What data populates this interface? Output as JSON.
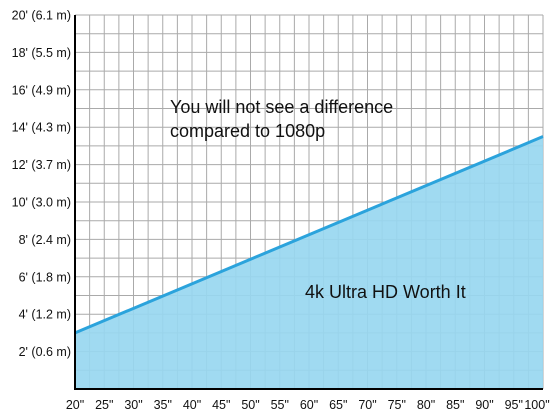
{
  "chart_data": {
    "type": "area",
    "x": [
      20,
      100
    ],
    "y": [
      3,
      13.5
    ],
    "x_ticks": [
      {
        "value": 20,
        "label": "20\""
      },
      {
        "value": 25,
        "label": "25\""
      },
      {
        "value": 30,
        "label": "30\""
      },
      {
        "value": 35,
        "label": "35\""
      },
      {
        "value": 40,
        "label": "40\""
      },
      {
        "value": 45,
        "label": "45\""
      },
      {
        "value": 50,
        "label": "50\""
      },
      {
        "value": 55,
        "label": "55\""
      },
      {
        "value": 60,
        "label": "60\""
      },
      {
        "value": 65,
        "label": "65\""
      },
      {
        "value": 70,
        "label": "70\""
      },
      {
        "value": 75,
        "label": "75\""
      },
      {
        "value": 80,
        "label": "80\""
      },
      {
        "value": 85,
        "label": "85\""
      },
      {
        "value": 90,
        "label": "90\""
      },
      {
        "value": 95,
        "label": "95\""
      },
      {
        "value": 100,
        "label": "100\""
      }
    ],
    "y_ticks": [
      {
        "value": 2,
        "label": "2' (0.6 m)"
      },
      {
        "value": 4,
        "label": "4' (1.2 m)"
      },
      {
        "value": 6,
        "label": "6' (1.8 m)"
      },
      {
        "value": 8,
        "label": "8' (2.4 m)"
      },
      {
        "value": 10,
        "label": "10' (3.0 m)"
      },
      {
        "value": 12,
        "label": "12' (3.7 m)"
      },
      {
        "value": 14,
        "label": "14' (4.3 m)"
      },
      {
        "value": 16,
        "label": "16' (4.9 m)"
      },
      {
        "value": 18,
        "label": "18' (5.5 m)"
      },
      {
        "value": 20,
        "label": "20' (6.1 m)"
      }
    ],
    "xlim": [
      20,
      100
    ],
    "ylim": [
      0,
      20
    ],
    "grid": true,
    "title": "",
    "xlabel": "",
    "ylabel": "",
    "annotations": {
      "above_line": [
        "You will not see a difference",
        "compared to 1080p"
      ],
      "below_line": "4k Ultra HD Worth It"
    },
    "colors": {
      "fill": "#98d7f0",
      "line": "#2ba3dc",
      "grid": "#aaaaaa",
      "axis": "#000000"
    }
  }
}
